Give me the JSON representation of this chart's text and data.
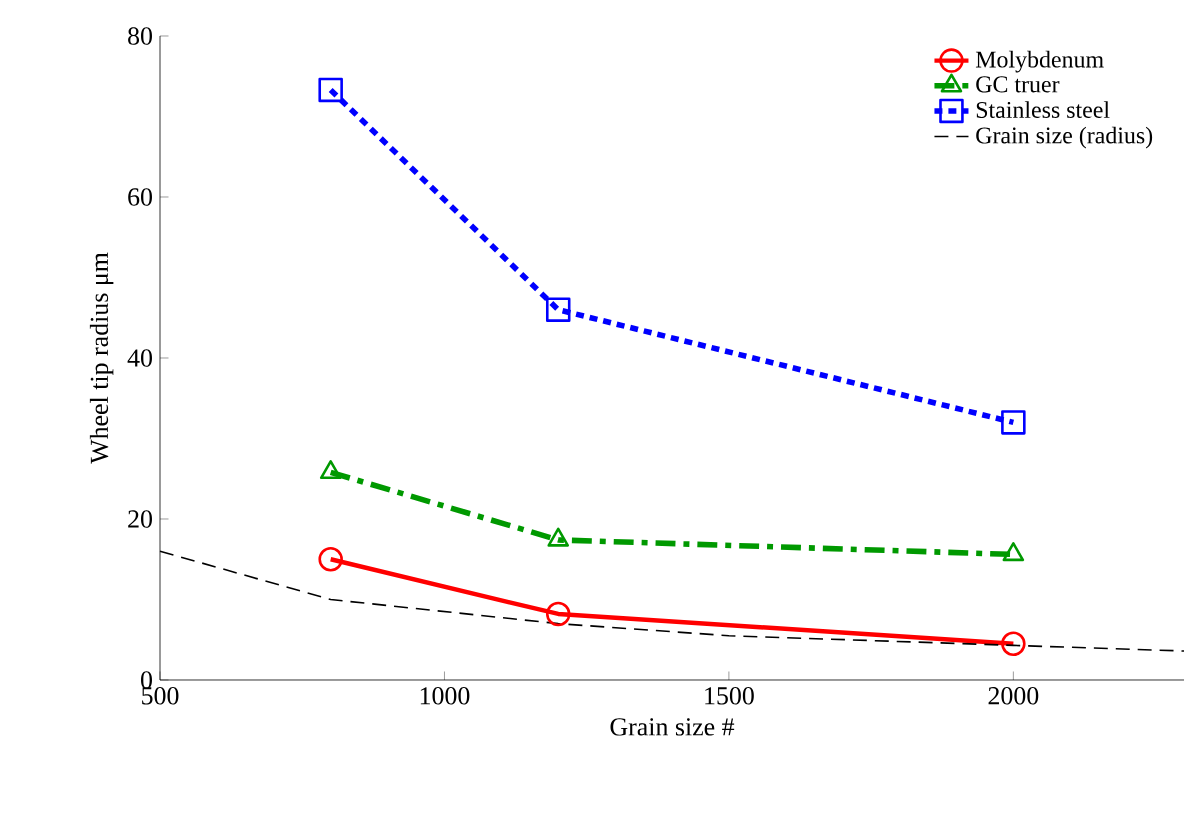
{
  "chart_data": {
    "type": "line",
    "xlabel": "Grain size #",
    "ylabel": "Wheel tip radius  μm",
    "xlim": [
      500,
      2300
    ],
    "ylim": [
      0,
      80
    ],
    "xticks": [
      500,
      1000,
      1500,
      2000
    ],
    "yticks": [
      0,
      20,
      40,
      60,
      80
    ],
    "grid": false,
    "legend": "top right",
    "series": [
      {
        "name": "Molybdenum",
        "color": "#ff0000",
        "marker": "circle",
        "line_style": "solid",
        "x": [
          800,
          1200,
          2000
        ],
        "values": [
          15,
          8.2,
          4.5
        ]
      },
      {
        "name": "GC truer",
        "color": "#009900",
        "marker": "triangle",
        "line_style": "dashdot",
        "x": [
          800,
          1200,
          2000
        ],
        "values": [
          25.8,
          17.4,
          15.6
        ]
      },
      {
        "name": "Stainless steel",
        "color": "#0000ff",
        "marker": "square",
        "line_style": "dotted",
        "x": [
          800,
          1200,
          2000
        ],
        "values": [
          73.3,
          46,
          32
        ]
      },
      {
        "name": "Grain size (radius)",
        "color": "#000000",
        "marker": "none",
        "line_style": "dashed",
        "x": [
          500,
          800,
          1200,
          1500,
          2000,
          2300
        ],
        "values": [
          16,
          10,
          7,
          5.5,
          4.3,
          3.6
        ]
      }
    ]
  }
}
